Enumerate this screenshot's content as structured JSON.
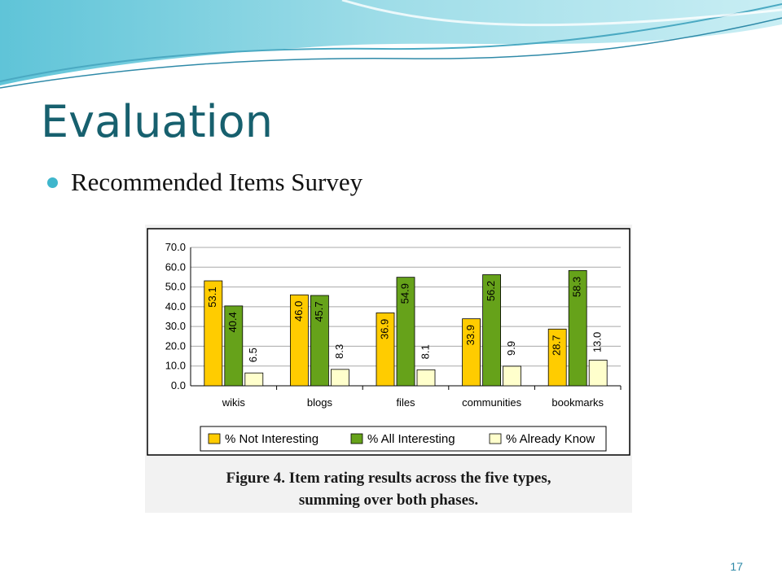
{
  "slide": {
    "title": "Evaluation",
    "bullet": "Recommended Items Survey",
    "page_number": "17"
  },
  "figure": {
    "caption_line1": "Figure 4. Item rating results across the five types,",
    "caption_line2": "summing over both phases."
  },
  "colors": {
    "title": "#17606e",
    "bullet": "#3fb6cc",
    "not_interesting": "#ffcc00",
    "all_interesting": "#66a21a",
    "already_know": "#ffffcc"
  },
  "chart_data": {
    "type": "bar",
    "categories": [
      "wikis",
      "blogs",
      "files",
      "communities",
      "bookmarks"
    ],
    "series": [
      {
        "name": "% Not Interesting",
        "values": [
          53.1,
          46.0,
          36.9,
          33.9,
          28.7
        ],
        "labels": [
          "53.1",
          "46.0",
          "36.9",
          "33.9",
          "28.7"
        ],
        "color": "#ffcc00"
      },
      {
        "name": "% All Interesting",
        "values": [
          40.4,
          45.7,
          54.9,
          56.2,
          58.3
        ],
        "labels": [
          "40.4",
          "45.7",
          "54.9",
          "56.2",
          "58.3"
        ],
        "color": "#66a21a"
      },
      {
        "name": "% Already Know",
        "values": [
          6.5,
          8.3,
          8.1,
          9.9,
          13.0
        ],
        "labels": [
          "6.5",
          "8.3",
          "8.1",
          "9.9",
          "13.0"
        ],
        "color": "#ffffcc"
      }
    ],
    "yticks": [
      "0.0",
      "10.0",
      "20.0",
      "30.0",
      "40.0",
      "50.0",
      "60.0",
      "70.0"
    ],
    "ylim": [
      0,
      70
    ],
    "grid": true,
    "legend": "bottom"
  }
}
